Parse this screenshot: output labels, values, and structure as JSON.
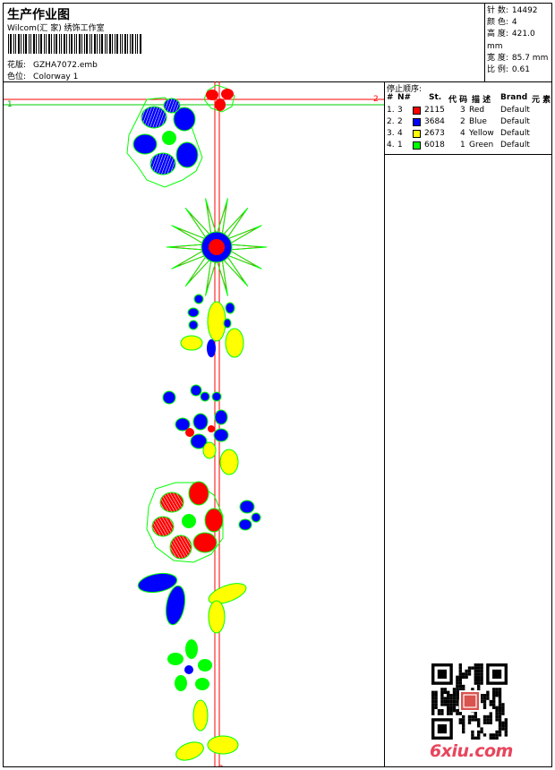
{
  "header": {
    "title": "生产作业图",
    "subtitle": "Wilcom(汇 家) 绣饰工作室",
    "design_label": "花版:",
    "design_value": "GZHA7072.emb",
    "colorway_label": "色位:",
    "colorway_value": "Colorway 1"
  },
  "stats": {
    "stitches_label": "针 数:",
    "stitches_value": "14492",
    "colors_label": "颜 色:",
    "colors_value": "4",
    "height_label": "高 度:",
    "height_value": "421.0 mm",
    "width_label": "宽 度:",
    "width_value": "85.7 mm",
    "scale_label": "比 例:",
    "scale_value": "0.61"
  },
  "stops": {
    "title": "停止顺序:",
    "headers": {
      "num": "#",
      "n": "N#",
      "st": "St.",
      "code": "代 码",
      "desc": "描 述",
      "brand": "Brand",
      "elem": "元 素"
    },
    "rows": [
      {
        "num": "1.",
        "n": "3",
        "st": "2115",
        "code": "3",
        "desc": "Red",
        "brand": "Default",
        "color": "#ff0000"
      },
      {
        "num": "2.",
        "n": "2",
        "st": "3684",
        "code": "2",
        "desc": "Blue",
        "brand": "Default",
        "color": "#0000ff"
      },
      {
        "num": "3.",
        "n": "4",
        "st": "2673",
        "code": "4",
        "desc": "Yellow",
        "brand": "Default",
        "color": "#ffff00"
      },
      {
        "num": "4.",
        "n": "1",
        "st": "6018",
        "code": "1",
        "desc": "Green",
        "brand": "Default",
        "color": "#00ff00"
      }
    ]
  },
  "guides": {
    "horizontal_label_left": "1",
    "horizontal_label_right": "2",
    "vertical_label_bottom": "2"
  },
  "brand_logo": "6xiu.com"
}
